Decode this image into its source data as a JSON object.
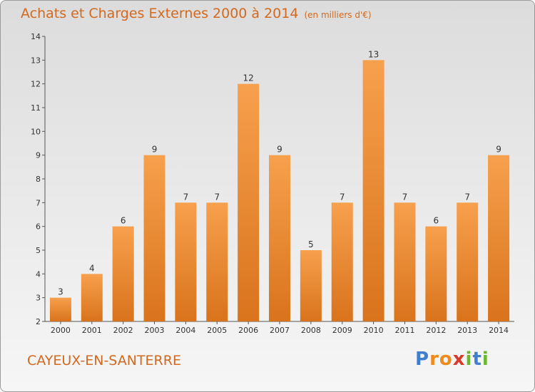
{
  "chart_data": {
    "type": "bar",
    "title": "Achats et Charges Externes 2000 à 2014",
    "subtitle": "(en milliers d'€)",
    "categories": [
      "2000",
      "2001",
      "2002",
      "2003",
      "2004",
      "2005",
      "2006",
      "2007",
      "2008",
      "2009",
      "2010",
      "2011",
      "2012",
      "2013",
      "2014"
    ],
    "values": [
      3,
      4,
      6,
      9,
      7,
      7,
      12,
      9,
      5,
      7,
      13,
      7,
      6,
      7,
      9
    ],
    "ylim": [
      2,
      14
    ],
    "yticks": [
      2,
      3,
      4,
      5,
      6,
      7,
      8,
      9,
      10,
      11,
      12,
      13,
      14
    ],
    "grid": false,
    "bar_color_top": "#f7a04d",
    "bar_color_bottom": "#d9731c"
  },
  "footer": {
    "city": "CAYEUX-EN-SANTERRE",
    "logo": [
      "P",
      "r",
      "o",
      "x",
      "i",
      "t",
      "i"
    ],
    "logo_colors": [
      "#3f7fd0",
      "#f08a1a",
      "#f08a1a",
      "#d83a2a",
      "#6ab82c",
      "#3f7fd0",
      "#6ab82c"
    ]
  }
}
